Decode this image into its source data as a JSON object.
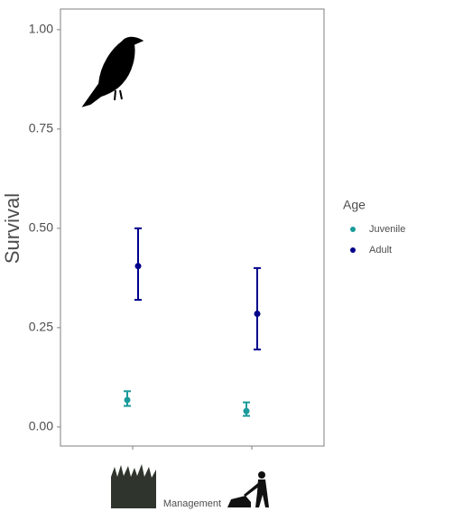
{
  "chart_data": {
    "type": "errorpoint",
    "y_label": "Survival",
    "x_label": "Management",
    "legend_title": "Age",
    "categories": [
      null,
      null
    ],
    "series": [
      {
        "name": "Juvenile",
        "color": "#1a9a9a",
        "values": [
          0.068,
          0.04
        ],
        "lower": [
          0.053,
          0.028
        ],
        "upper": [
          0.09,
          0.062
        ]
      },
      {
        "name": "Adult",
        "color": "#00008b",
        "values": [
          0.405,
          0.285
        ],
        "lower": [
          0.32,
          0.195
        ],
        "upper": [
          0.5,
          0.4
        ]
      }
    ],
    "ylim": [
      -0.048,
      1.052
    ],
    "yticks": [
      {
        "value": 0,
        "label": "0.00"
      },
      {
        "value": 0.25,
        "label": "0.25"
      },
      {
        "value": 0.5,
        "label": "0.50"
      },
      {
        "value": 0.75,
        "label": "0.75"
      },
      {
        "value": 1,
        "label": "1.00"
      }
    ],
    "grid": false
  }
}
